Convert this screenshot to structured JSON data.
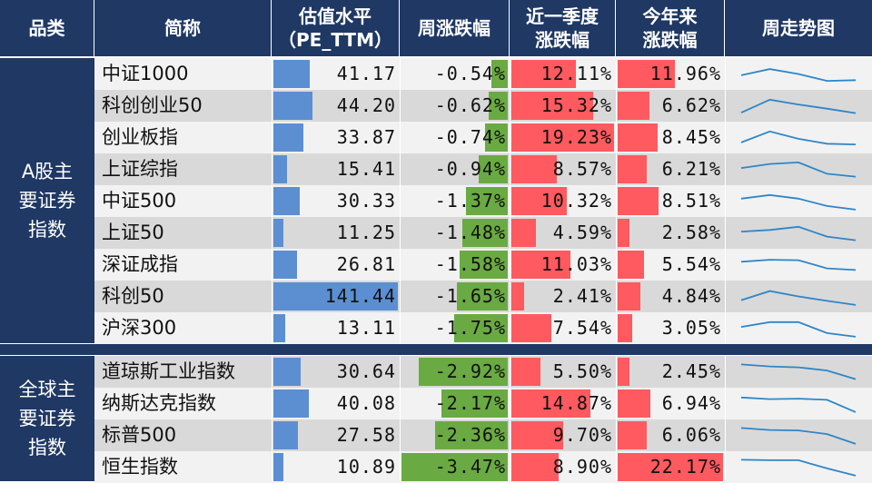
{
  "header": {
    "category": "品类",
    "name": "简称",
    "pe_line1": "估值水平",
    "pe_line2": "（PE_TTM）",
    "week": "周涨跌幅",
    "quarter_line1": "近一季度",
    "quarter_line2": "涨跌幅",
    "ytd_line1": "今年来",
    "ytd_line2": "涨跌幅",
    "trend": "周走势图"
  },
  "groups": [
    {
      "category": "A股主要证券指数"
    },
    {
      "category": "全球主要证券指数"
    }
  ],
  "colors": {
    "header_bg": "#1f3864",
    "pe_bar": "#5b8fd1",
    "week_bar": "#6aaa42",
    "quarter_bar": "#ff5a5f",
    "ytd_bar": "#ff5a5f",
    "spark": "#2e86c8",
    "row_light": "#f2f2f2",
    "row_dark": "#d9d9d9"
  },
  "chart_data": {
    "type": "table",
    "columns": [
      "简称",
      "估值水平（PE_TTM）",
      "周涨跌幅",
      "近一季度涨跌幅",
      "今年来涨跌幅",
      "周走势图"
    ],
    "rows": [
      {
        "group": 0,
        "name": "中证1000",
        "pe": 41.17,
        "pe_text": "41.17",
        "week": -0.54,
        "week_text": "-0.54%",
        "quarter": 12.11,
        "quarter_text": "12.11%",
        "ytd": 11.96,
        "ytd_text": "11.96%",
        "trend": [
          0.45,
          0.7,
          0.5,
          0.22,
          0.25
        ]
      },
      {
        "group": 0,
        "name": "科创创业50",
        "pe": 44.2,
        "pe_text": "44.20",
        "week": -0.62,
        "week_text": "-0.62%",
        "quarter": 15.32,
        "quarter_text": "15.32%",
        "ytd": 6.62,
        "ytd_text": "6.62%",
        "trend": [
          0.22,
          0.75,
          0.55,
          0.38,
          0.2
        ]
      },
      {
        "group": 0,
        "name": "创业板指",
        "pe": 33.87,
        "pe_text": "33.87",
        "week": -0.74,
        "week_text": "-0.74%",
        "quarter": 19.23,
        "quarter_text": "19.23%",
        "ytd": 8.45,
        "ytd_text": "8.45%",
        "trend": [
          0.3,
          0.75,
          0.45,
          0.25,
          0.22
        ]
      },
      {
        "group": 0,
        "name": "上证综指",
        "pe": 15.41,
        "pe_text": "15.41",
        "week": -0.94,
        "week_text": "-0.94%",
        "quarter": 8.57,
        "quarter_text": "8.57%",
        "ytd": 6.21,
        "ytd_text": "6.21%",
        "trend": [
          0.55,
          0.72,
          0.78,
          0.32,
          0.2
        ]
      },
      {
        "group": 0,
        "name": "中证500",
        "pe": 30.33,
        "pe_text": "30.33",
        "week": -1.37,
        "week_text": "-1.37%",
        "quarter": 10.32,
        "quarter_text": "10.32%",
        "ytd": 8.51,
        "ytd_text": "8.51%",
        "trend": [
          0.6,
          0.75,
          0.6,
          0.3,
          0.15
        ]
      },
      {
        "group": 0,
        "name": "上证50",
        "pe": 11.25,
        "pe_text": "11.25",
        "week": -1.48,
        "week_text": "-1.48%",
        "quarter": 4.59,
        "quarter_text": "4.59%",
        "ytd": 2.58,
        "ytd_text": "2.58%",
        "trend": [
          0.55,
          0.62,
          0.75,
          0.35,
          0.2
        ]
      },
      {
        "group": 0,
        "name": "深证成指",
        "pe": 26.81,
        "pe_text": "26.81",
        "week": -1.58,
        "week_text": "-1.58%",
        "quarter": 11.03,
        "quarter_text": "11.03%",
        "ytd": 5.54,
        "ytd_text": "5.54%",
        "trend": [
          0.62,
          0.7,
          0.68,
          0.35,
          0.28
        ]
      },
      {
        "group": 0,
        "name": "科创50",
        "pe": 141.44,
        "pe_text": "141.44",
        "week": -1.65,
        "week_text": "-1.65%",
        "quarter": 2.41,
        "quarter_text": "2.41%",
        "ytd": 4.84,
        "ytd_text": "4.84%",
        "trend": [
          0.35,
          0.72,
          0.5,
          0.32,
          0.15
        ]
      },
      {
        "group": 0,
        "name": "沪深300",
        "pe": 13.11,
        "pe_text": "13.11",
        "week": -1.75,
        "week_text": "-1.75%",
        "quarter": 7.54,
        "quarter_text": "7.54%",
        "ytd": 3.05,
        "ytd_text": "3.05%",
        "trend": [
          0.55,
          0.75,
          0.75,
          0.3,
          0.15
        ]
      },
      {
        "group": 1,
        "name": "道琼斯工业指数",
        "pe": 30.64,
        "pe_text": "30.64",
        "week": -2.92,
        "week_text": "-2.92%",
        "quarter": 5.5,
        "quarter_text": "5.50%",
        "ytd": 2.45,
        "ytd_text": "2.45%",
        "trend": [
          0.8,
          0.72,
          0.68,
          0.55,
          0.2
        ]
      },
      {
        "group": 1,
        "name": "纳斯达克指数",
        "pe": 40.08,
        "pe_text": "40.08",
        "week": -2.17,
        "week_text": "-2.17%",
        "quarter": 14.87,
        "quarter_text": "14.87%",
        "ytd": 6.94,
        "ytd_text": "6.94%",
        "trend": [
          0.75,
          0.68,
          0.7,
          0.65,
          0.15
        ]
      },
      {
        "group": 1,
        "name": "标普500",
        "pe": 27.58,
        "pe_text": "27.58",
        "week": -2.36,
        "week_text": "-2.36%",
        "quarter": 9.7,
        "quarter_text": "9.70%",
        "ytd": 6.06,
        "ytd_text": "6.06%",
        "trend": [
          0.8,
          0.72,
          0.7,
          0.55,
          0.15
        ]
      },
      {
        "group": 1,
        "name": "恒生指数",
        "pe": 10.89,
        "pe_text": "10.89",
        "week": -3.47,
        "week_text": "-3.47%",
        "quarter": 8.9,
        "quarter_text": "8.90%",
        "ytd": 22.17,
        "ytd_text": "22.17%",
        "trend": [
          0.8,
          0.78,
          0.78,
          0.45,
          0.15
        ]
      }
    ]
  }
}
